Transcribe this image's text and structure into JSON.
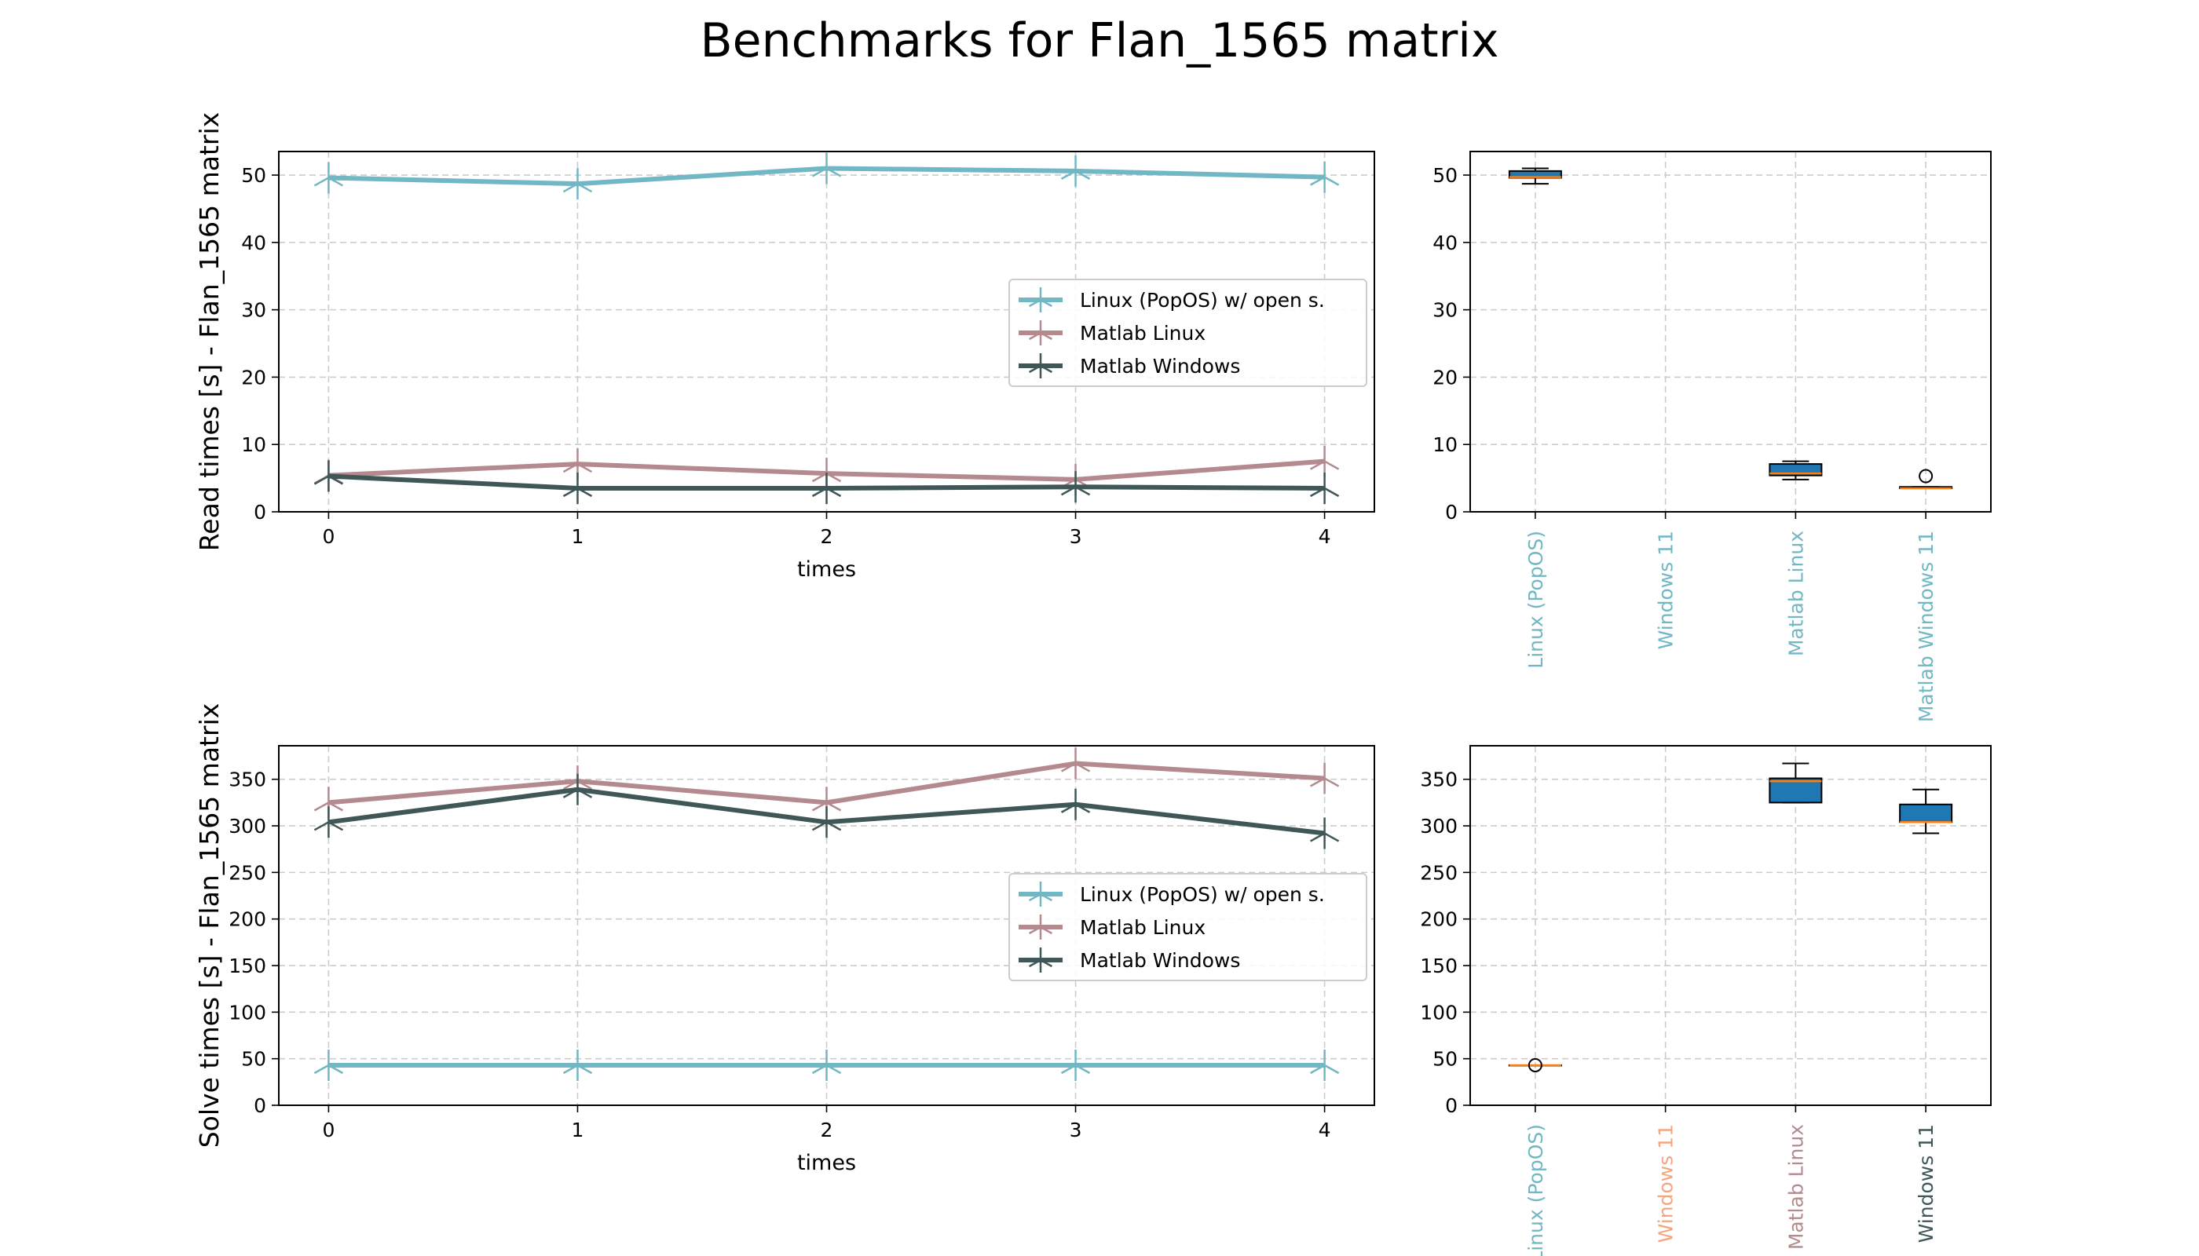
{
  "figure": {
    "title": "Benchmarks for Flan_1565 matrix"
  },
  "colors": {
    "linux": "#72b7c4",
    "matlab_linux": "#b58a8f",
    "matlab_windows": "#3f5756",
    "box_fill": "#1f77b4",
    "median": "#ff7f0e",
    "label_salmon": "#f4a582",
    "grid": "#cccccc"
  },
  "chart_data": [
    {
      "type": "line",
      "id": "read-line",
      "title": "",
      "xlabel": "times",
      "ylabel": "Read times [s] - Flan_1565 matrix",
      "x": [
        0,
        1,
        2,
        3,
        4
      ],
      "xlim": [
        -0.2,
        4.2
      ],
      "ylim": [
        0,
        53.5
      ],
      "yticks": [
        0,
        10,
        20,
        30,
        40,
        50
      ],
      "xticks": [
        0,
        1,
        2,
        3,
        4
      ],
      "grid": true,
      "legend_position": "center-right",
      "series": [
        {
          "name": "Linux (PopOS) w/ open s.",
          "color_key": "linux",
          "values": [
            49.6,
            48.7,
            51.0,
            50.6,
            49.7
          ]
        },
        {
          "name": "Matlab Linux",
          "color_key": "matlab_linux",
          "values": [
            5.4,
            7.1,
            5.7,
            4.8,
            7.5
          ]
        },
        {
          "name": "Matlab Windows",
          "color_key": "matlab_windows",
          "values": [
            5.3,
            3.5,
            3.5,
            3.7,
            3.5
          ]
        }
      ]
    },
    {
      "type": "box",
      "id": "read-box",
      "ylim": [
        0,
        53.5
      ],
      "yticks": [
        0,
        10,
        20,
        30,
        40,
        50
      ],
      "grid": true,
      "categories": [
        {
          "label": "Linux (PopOS)",
          "label_color_key": "linux",
          "box": {
            "whislo": 48.7,
            "q1": 49.6,
            "med": 49.7,
            "q3": 50.6,
            "whishi": 51.0
          },
          "fliers": []
        },
        {
          "label": "Windows 11",
          "label_color_key": "linux",
          "box": null,
          "fliers": []
        },
        {
          "label": "Matlab Linux",
          "label_color_key": "linux",
          "box": {
            "whislo": 4.8,
            "q1": 5.4,
            "med": 5.7,
            "q3": 7.1,
            "whishi": 7.5
          },
          "fliers": []
        },
        {
          "label": "Matlab Windows 11",
          "label_color_key": "linux",
          "box": {
            "whislo": 3.5,
            "q1": 3.5,
            "med": 3.5,
            "q3": 3.7,
            "whishi": 3.7
          },
          "fliers": [
            5.3
          ]
        }
      ]
    },
    {
      "type": "line",
      "id": "solve-line",
      "title": "",
      "xlabel": "times",
      "ylabel": "Solve times [s] - Flan_1565 matrix",
      "x": [
        0,
        1,
        2,
        3,
        4
      ],
      "xlim": [
        -0.2,
        4.2
      ],
      "ylim": [
        0,
        386
      ],
      "yticks": [
        0,
        50,
        100,
        150,
        200,
        250,
        300,
        350
      ],
      "xticks": [
        0,
        1,
        2,
        3,
        4
      ],
      "grid": true,
      "legend_position": "center-right",
      "series": [
        {
          "name": "Linux (PopOS) w/ open s.",
          "color_key": "linux",
          "values": [
            43,
            43,
            43,
            43,
            43
          ]
        },
        {
          "name": "Matlab Linux",
          "color_key": "matlab_linux",
          "values": [
            325,
            348,
            325,
            367,
            351
          ]
        },
        {
          "name": "Matlab Windows",
          "color_key": "matlab_windows",
          "values": [
            304,
            339,
            304,
            323,
            292
          ]
        }
      ]
    },
    {
      "type": "box",
      "id": "solve-box",
      "ylim": [
        0,
        386
      ],
      "yticks": [
        0,
        50,
        100,
        150,
        200,
        250,
        300,
        350
      ],
      "grid": true,
      "categories": [
        {
          "label": "Linux (PopOS)",
          "label_color_key": "linux",
          "box": {
            "whislo": 43,
            "q1": 43,
            "med": 43,
            "q3": 43,
            "whishi": 43
          },
          "fliers": [
            43
          ]
        },
        {
          "label": "Windows 11",
          "label_color_key": "label_salmon",
          "box": null,
          "fliers": []
        },
        {
          "label": "Matlab Linux",
          "label_color_key": "matlab_linux",
          "box": {
            "whislo": 325,
            "q1": 325,
            "med": 348,
            "q3": 351,
            "whishi": 367
          },
          "fliers": []
        },
        {
          "label": "Windows 11",
          "label_color_key": "matlab_windows",
          "box": {
            "whislo": 292,
            "q1": 304,
            "med": 304,
            "q3": 323,
            "whishi": 339
          },
          "fliers": []
        }
      ]
    }
  ]
}
